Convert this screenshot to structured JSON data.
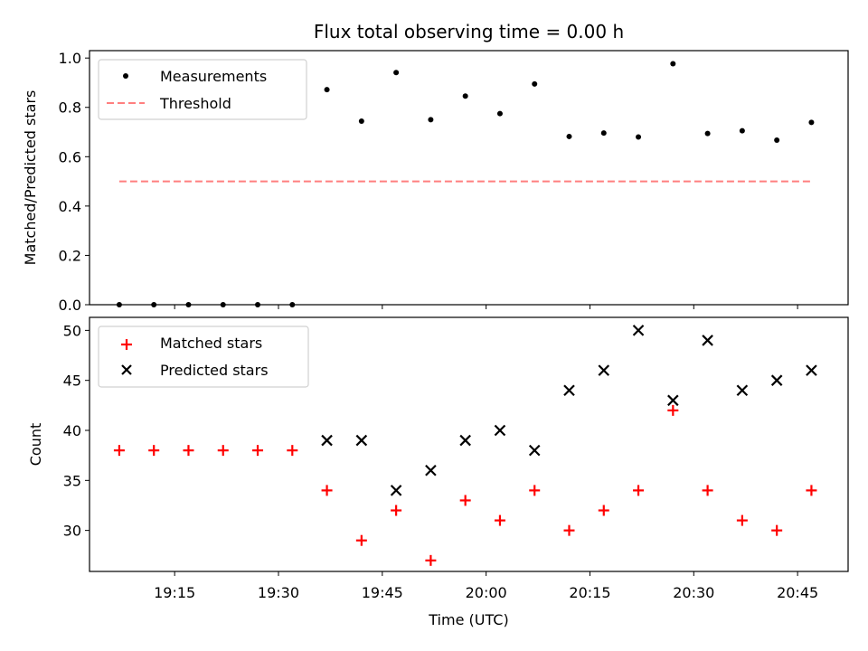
{
  "chart_data": [
    {
      "type": "scatter",
      "title": "Flux total observing time = 0.00 h",
      "xlabel": "",
      "ylabel": "Matched/Predicted stars",
      "ylim": [
        0,
        1.03
      ],
      "yticks": [
        "0.0",
        "0.2",
        "0.4",
        "0.6",
        "0.8",
        "1.0"
      ],
      "ytick_values": [
        0,
        0.2,
        0.4,
        0.6,
        0.8,
        1.0
      ],
      "legend_position": "top-left",
      "times": [
        "19:07",
        "19:12",
        "19:17",
        "19:22",
        "19:27",
        "19:32",
        "19:37",
        "19:42",
        "19:47",
        "19:52",
        "19:57",
        "20:02",
        "20:07",
        "20:12",
        "20:17",
        "20:22",
        "20:27",
        "20:32",
        "20:37",
        "20:42",
        "20:47"
      ],
      "series": [
        {
          "name": "Measurements",
          "marker": "dot",
          "color": "#000000",
          "values": [
            0,
            0,
            0,
            0,
            0,
            0,
            0.872,
            0.744,
            0.941,
            0.75,
            0.846,
            0.775,
            0.895,
            0.682,
            0.696,
            0.68,
            0.977,
            0.694,
            0.705,
            0.667,
            0.739
          ]
        },
        {
          "name": "Threshold",
          "marker": "dashed-line",
          "color": "#ff7f7f",
          "values": [
            0.5,
            0.5
          ]
        }
      ]
    },
    {
      "type": "scatter",
      "title": "",
      "xlabel": "Time (UTC)",
      "ylabel": "Count",
      "ylim": [
        25.9,
        51.3
      ],
      "yticks": [
        "30",
        "35",
        "40",
        "45",
        "50"
      ],
      "ytick_values": [
        30,
        35,
        40,
        45,
        50
      ],
      "xticks": [
        "19:15",
        "19:30",
        "19:45",
        "20:00",
        "20:15",
        "20:30",
        "20:45"
      ],
      "xtick_minutes": [
        1155,
        1170,
        1185,
        1200,
        1215,
        1230,
        1245
      ],
      "legend_position": "top-left",
      "times": [
        "19:07",
        "19:12",
        "19:17",
        "19:22",
        "19:27",
        "19:32",
        "19:37",
        "19:42",
        "19:47",
        "19:52",
        "19:57",
        "20:02",
        "20:07",
        "20:12",
        "20:17",
        "20:22",
        "20:27",
        "20:32",
        "20:37",
        "20:42",
        "20:47"
      ],
      "series": [
        {
          "name": "Matched stars",
          "marker": "plus",
          "color": "#ff0000",
          "values": [
            38,
            38,
            38,
            38,
            38,
            38,
            34,
            29,
            32,
            27,
            33,
            31,
            34,
            30,
            32,
            34,
            42,
            34,
            31,
            30,
            34
          ]
        },
        {
          "name": "Predicted stars",
          "marker": "x",
          "color": "#000000",
          "values": [
            null,
            null,
            null,
            null,
            null,
            null,
            39,
            39,
            34,
            36,
            39,
            40,
            38,
            44,
            46,
            50,
            43,
            49,
            44,
            45,
            46
          ]
        }
      ]
    }
  ]
}
